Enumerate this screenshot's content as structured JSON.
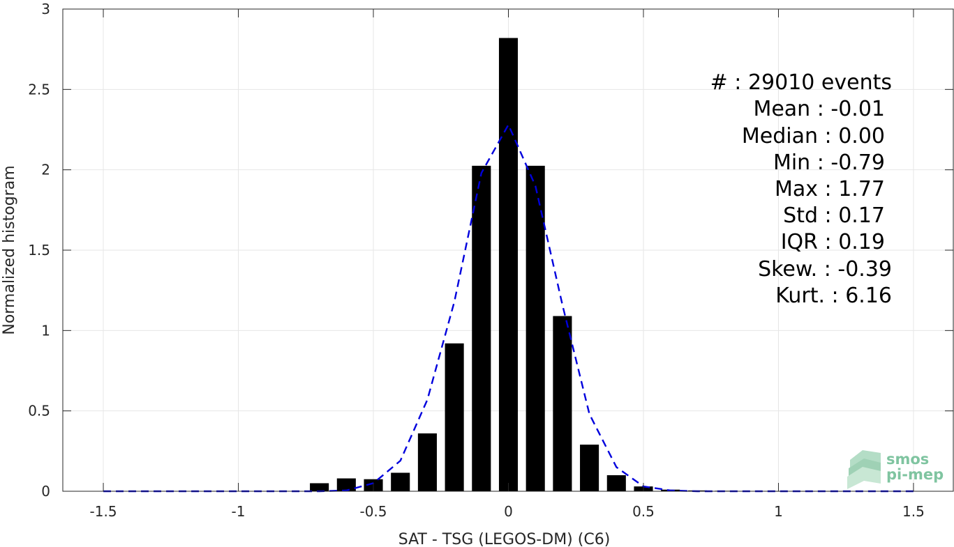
{
  "chart_data": {
    "type": "bar",
    "xlabel": "SAT - TSG (LEGOS-DM) (C6)",
    "ylabel": "Normalized histogram",
    "xlim": [
      -1.65,
      1.65
    ],
    "ylim": [
      0,
      3
    ],
    "xticks": [
      -1.5,
      -1,
      -0.5,
      0,
      0.5,
      1,
      1.5
    ],
    "xtick_labels": [
      "-1.5",
      "-1",
      "-0.5",
      "0",
      "0.5",
      "1",
      "1.5"
    ],
    "yticks": [
      0,
      0.5,
      1,
      1.5,
      2,
      2.5,
      3
    ],
    "ytick_labels": [
      "0",
      "0.5",
      "1",
      "1.5",
      "2",
      "2.5",
      "3"
    ],
    "grid": true,
    "bar_width": 0.07,
    "bar_color": "#000000",
    "bars": {
      "x": [
        -1.5,
        -1.4,
        -1.3,
        -1.2,
        -1.1,
        -1.0,
        -0.9,
        -0.8,
        -0.7,
        -0.6,
        -0.5,
        -0.4,
        -0.3,
        -0.2,
        -0.1,
        0.0,
        0.1,
        0.2,
        0.3,
        0.4,
        0.5,
        0.6,
        0.7,
        0.8,
        0.9,
        1.0,
        1.1,
        1.2,
        1.3,
        1.4,
        1.5
      ],
      "values": [
        0,
        0,
        0,
        0,
        0,
        0,
        0,
        0,
        0.05,
        0.08,
        0.075,
        0.115,
        0.36,
        0.92,
        2.025,
        2.82,
        2.025,
        1.09,
        0.29,
        0.1,
        0.03,
        0.01,
        0.005,
        0.003,
        0.002,
        0.001,
        0.001,
        0.001,
        0,
        0,
        0.002
      ]
    },
    "fit_curve": {
      "color": "#0000dd",
      "style": "dashed",
      "x": [
        -1.5,
        -1.4,
        -1.3,
        -1.2,
        -1.1,
        -1.0,
        -0.9,
        -0.8,
        -0.7,
        -0.6,
        -0.5,
        -0.4,
        -0.3,
        -0.2,
        -0.1,
        0.0,
        0.1,
        0.2,
        0.3,
        0.4,
        0.5,
        0.6,
        0.7,
        0.8,
        0.9,
        1.0,
        1.1,
        1.2,
        1.3,
        1.4,
        1.5
      ],
      "values": [
        0,
        0,
        0,
        0,
        0,
        0,
        0,
        0,
        0,
        0.005,
        0.05,
        0.19,
        0.57,
        1.18,
        1.98,
        2.28,
        1.9,
        1.16,
        0.48,
        0.15,
        0.03,
        0.005,
        0,
        0,
        0,
        0,
        0,
        0,
        0,
        0,
        0
      ]
    }
  },
  "stats": [
    {
      "label": "#  : 29010 events"
    },
    {
      "label": "Mean : -0.01"
    },
    {
      "label": "Median : 0.00"
    },
    {
      "label": "Min : -0.79"
    },
    {
      "label": "Max : 1.77"
    },
    {
      "label": "Std : 0.17"
    },
    {
      "label": "IQR : 0.19"
    },
    {
      "label": "Skew. : -0.39"
    },
    {
      "label": "Kurt. : 6.16"
    }
  ],
  "logo": {
    "line1": "smos",
    "line2": "pi-mep",
    "color": "#7fc4a0"
  }
}
